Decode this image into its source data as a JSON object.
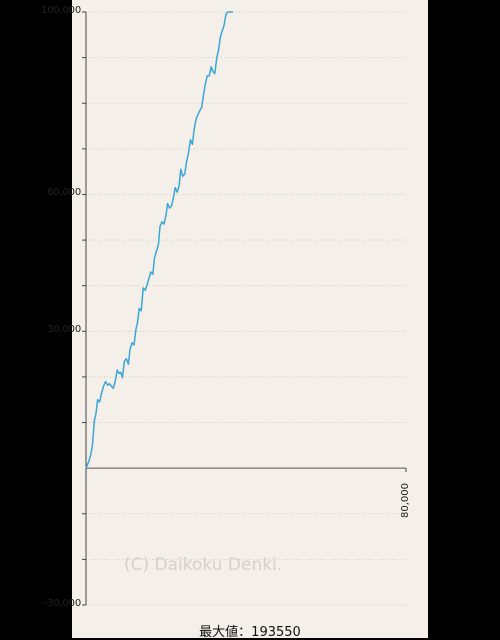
{
  "chart_data": {
    "type": "line",
    "title": "",
    "xlabel": "",
    "ylabel": "",
    "ylim": [
      -30000,
      100000
    ],
    "xlim": [
      0,
      80000
    ],
    "y_tick_labels": [
      {
        "value": 100000,
        "label": "100,000"
      },
      {
        "value": 60000,
        "label": "60,000"
      },
      {
        "value": 30000,
        "label": "30,000"
      },
      {
        "value": -30000,
        "label": "-30,000"
      }
    ],
    "y_gridlines": [
      90000,
      80000,
      70000,
      50000,
      40000,
      20000,
      10000,
      -10000,
      -20000
    ],
    "x_tick_labels": [
      {
        "value": 80000,
        "label": "80,000"
      }
    ],
    "grid": true,
    "series": [
      {
        "color": "#3aa6d6",
        "x": [
          0,
          700,
          1200,
          1600,
          2100,
          2500,
          2900,
          3400,
          3900,
          4400,
          4900,
          5400,
          5900,
          6300,
          6800,
          7300,
          7800,
          8300,
          8700,
          9100,
          9600,
          10100,
          10600,
          11000,
          11500,
          12000,
          12500,
          12900,
          13300,
          13800,
          14300,
          14800,
          15200,
          15700,
          16200,
          16700,
          17100,
          17600,
          18100,
          18500,
          19000,
          19500,
          20000,
          20400,
          20900,
          21400,
          21900,
          22300,
          22800,
          23300,
          23700,
          24200,
          24700,
          25100,
          25600,
          26100,
          26600,
          27000,
          27500,
          28000,
          28500,
          28900,
          29400,
          29900,
          30300,
          30800,
          31300,
          31700,
          32200,
          32700,
          33100,
          33600,
          34100,
          34500,
          35000,
          35400,
          35800,
          36300,
          36700
        ],
        "y": [
          0,
          1500,
          3000,
          5000,
          10500,
          12000,
          15000,
          14500,
          16500,
          18000,
          19000,
          18200,
          18500,
          18000,
          17500,
          19000,
          21500,
          20800,
          21000,
          19800,
          23500,
          24000,
          22800,
          26000,
          27500,
          27000,
          30500,
          32000,
          35000,
          34500,
          39500,
          39000,
          40000,
          41500,
          43000,
          42500,
          46000,
          47500,
          49000,
          53000,
          54000,
          53500,
          55500,
          58000,
          57000,
          57500,
          59500,
          61500,
          60500,
          62000,
          65500,
          64000,
          64500,
          67000,
          69000,
          72000,
          71000,
          74000,
          76500,
          77500,
          78500,
          79000,
          82000,
          84500,
          86000,
          86000,
          88000,
          87000,
          86500,
          90000,
          91500,
          94500,
          96000,
          97000,
          99500,
          100000,
          100000,
          100000,
          100000
        ]
      }
    ]
  },
  "watermark": "(C) Daikoku Denki.",
  "max_label": "最大値：193550"
}
